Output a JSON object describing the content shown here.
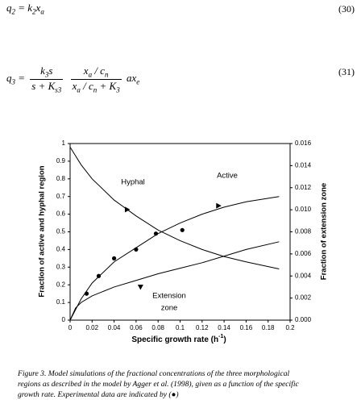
{
  "equations": [
    {
      "lhs": [
        "q",
        "2"
      ],
      "rhs": [
        "= k",
        "2",
        "x",
        "a"
      ],
      "number": "(30)"
    },
    {
      "lhs": [
        "q",
        "3"
      ],
      "eq": "=",
      "frac1": {
        "num": [
          "k",
          "3",
          "s"
        ],
        "den": [
          "s + K",
          "s3"
        ]
      },
      "frac2": {
        "num": [
          "x",
          "a",
          " / c",
          "n"
        ],
        "den": [
          "x",
          "a",
          " / c",
          "n",
          " + K",
          "3"
        ]
      },
      "tail": [
        "ax",
        "e"
      ],
      "number": "(31)"
    }
  ],
  "chart_data": {
    "type": "line",
    "ylabel": "Fraction of active and hyphal region",
    "y2label": "Fraction of extension zone",
    "xlabel": [
      "Specific growth rate (h",
      "-1",
      ")"
    ],
    "xlim": [
      0,
      0.2
    ],
    "xticks": [
      0,
      0.02,
      0.04,
      0.06,
      0.08,
      0.1,
      0.12,
      0.14,
      0.16,
      0.18,
      0.2
    ],
    "ylim": [
      0,
      1
    ],
    "yticks": [
      0,
      0.1,
      0.2,
      0.3,
      0.4,
      0.5,
      0.6,
      0.7,
      0.8,
      0.9,
      1
    ],
    "y2lim": [
      0,
      0.016
    ],
    "y2ticks": [
      {
        "value": 0,
        "label": "0.000"
      },
      {
        "value": 0.002,
        "label": "0.002"
      },
      {
        "value": 0.004,
        "label": "0.004"
      },
      {
        "value": 0.006,
        "label": "0.006"
      },
      {
        "value": 0.008,
        "label": "0.008"
      },
      {
        "value": 0.01,
        "label": "0.010"
      },
      {
        "value": 0.012,
        "label": "0.012"
      },
      {
        "value": 0.014,
        "label": "0.014"
      },
      {
        "value": 0.016,
        "label": "0.016"
      }
    ],
    "series": [
      {
        "color": "#000000",
        "x": [
          0,
          0.005,
          0.01,
          0.02,
          0.04,
          0.06,
          0.08,
          0.1,
          0.12,
          0.14,
          0.16,
          0.19
        ],
        "values": [
          0.98,
          0.93,
          0.88,
          0.8,
          0.68,
          0.59,
          0.51,
          0.45,
          0.4,
          0.36,
          0.33,
          0.29
        ]
      },
      {
        "color": "#000000",
        "x": [
          0,
          0.005,
          0.01,
          0.02,
          0.04,
          0.06,
          0.08,
          0.1,
          0.12,
          0.14,
          0.16,
          0.19
        ],
        "values": [
          0,
          0.06,
          0.12,
          0.21,
          0.33,
          0.41,
          0.49,
          0.55,
          0.6,
          0.64,
          0.67,
          0.7
        ]
      },
      {
        "color": "#000000",
        "axis": "y2",
        "x": [
          0,
          0.005,
          0.01,
          0.02,
          0.04,
          0.06,
          0.08,
          0.1,
          0.12,
          0.14,
          0.16,
          0.19
        ],
        "values": [
          0,
          0.0011,
          0.0016,
          0.0022,
          0.003,
          0.0036,
          0.0042,
          0.0047,
          0.0052,
          0.0058,
          0.0064,
          0.0071
        ]
      },
      {
        "type": "scatter",
        "marker": "circle",
        "color": "#000000",
        "x": [
          0.015,
          0.026,
          0.04,
          0.06,
          0.078,
          0.102
        ],
        "values": [
          0.15,
          0.25,
          0.35,
          0.4,
          0.49,
          0.51
        ]
      },
      {
        "type": "scatter",
        "marker": "triangle-right",
        "color": "#000000",
        "x": [
          0.052,
          0.135
        ],
        "values": [
          0.626,
          0.648
        ]
      },
      {
        "type": "scatter",
        "marker": "triangle-down",
        "color": "#000000",
        "x": [
          0.064
        ],
        "values": [
          0.187
        ]
      }
    ],
    "annotations": [
      "Hyphal",
      "Active",
      "Extension",
      "zone"
    ]
  },
  "caption": [
    "Figure 3. Model simulations of the fractional concentrations of the three morphological",
    "regions as described in the model by Agger et al. (1998), given as a function of the specific",
    "growth rate. Experimental data are indicated by (●)"
  ]
}
